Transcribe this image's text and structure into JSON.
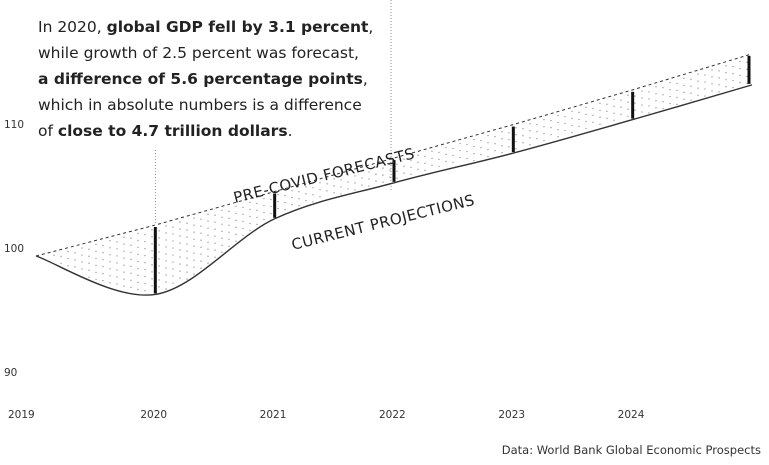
{
  "annotation": {
    "segments": [
      {
        "text": "In 2020, ",
        "bold": false
      },
      {
        "text": "global GDP fell by 3.1 percent",
        "bold": true
      },
      {
        "text": ",",
        "bold": false
      },
      {
        "br": true
      },
      {
        "text": "while growth of 2.5 percent was forecast,",
        "bold": false
      },
      {
        "br": true
      },
      {
        "text": "a difference of 5.6 percentage points",
        "bold": true
      },
      {
        "text": ",",
        "bold": false
      },
      {
        "br": true
      },
      {
        "text": "which in absolute numbers is a difference",
        "bold": false
      },
      {
        "br": true
      },
      {
        "text": "of ",
        "bold": false
      },
      {
        "text": "close to 4.7 trillion dollars",
        "bold": true
      },
      {
        "text": ".",
        "bold": false
      }
    ]
  },
  "source": "Data: World Bank Global Economic Prospects",
  "colors": {
    "text": "#222222",
    "dots": "#9a9a9a",
    "bars": "#111111",
    "lines": "#333333"
  },
  "chart_data": {
    "type": "line",
    "x": [
      2019,
      2020,
      2021,
      2022,
      2023,
      2024,
      2025
    ],
    "x_tick_labels": [
      "2019",
      "2020",
      "2021",
      "2022",
      "2023",
      "2024"
    ],
    "y_tick_labels": [
      "90",
      "100",
      "110"
    ],
    "ylim": [
      90,
      114
    ],
    "grid": false,
    "series": [
      {
        "name": "PRE-COVID FORECASTS",
        "style": "dashed",
        "values": [
          100,
          102.5,
          105.2,
          107.9,
          110.6,
          113.4,
          116.3
        ]
      },
      {
        "name": "CURRENT PROJECTIONS",
        "style": "solid",
        "values": [
          100,
          96.9,
          103.0,
          105.9,
          108.3,
          111.0,
          113.8
        ]
      }
    ],
    "gap_markers_at": [
      2020,
      2021,
      2022,
      2023,
      2024,
      2025
    ]
  }
}
